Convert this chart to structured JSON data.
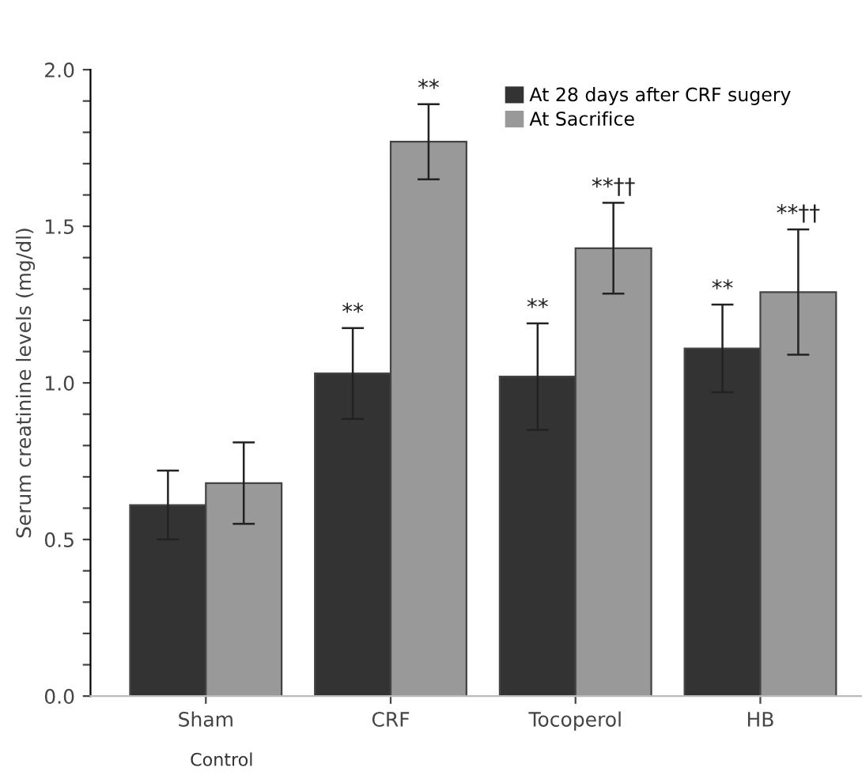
{
  "chart_data": {
    "type": "bar",
    "ylabel": "Serum creatinine levels (mg/dl)",
    "xlabel": "Control",
    "categories": [
      "Sham",
      "CRF",
      "Tocoperol",
      "HB"
    ],
    "series": [
      {
        "name": "At 28 days after CRF sugery",
        "color": "#333333",
        "values": [
          0.61,
          1.03,
          1.02,
          1.11
        ],
        "errors": [
          0.11,
          0.145,
          0.17,
          0.14
        ],
        "value_labels": [
          null,
          "**",
          "**",
          "**"
        ]
      },
      {
        "name": "At Sacrifice",
        "color": "#999999",
        "values": [
          0.68,
          1.77,
          1.43,
          1.29
        ],
        "errors": [
          0.13,
          0.12,
          0.145,
          0.2
        ],
        "value_labels": [
          null,
          "**",
          "**††",
          "**††"
        ]
      }
    ],
    "ylim": [
      0,
      2.0
    ],
    "yticks": [
      {
        "value": 0,
        "label": "0.0"
      },
      {
        "value": 0.1,
        "label": null
      },
      {
        "value": 0.2,
        "label": null
      },
      {
        "value": 0.3,
        "label": null
      },
      {
        "value": 0.4,
        "label": null
      },
      {
        "value": 0.5,
        "label": "0.5"
      },
      {
        "value": 0.6,
        "label": null
      },
      {
        "value": 0.7,
        "label": null
      },
      {
        "value": 0.8,
        "label": null
      },
      {
        "value": 0.9,
        "label": null
      },
      {
        "value": 1.0,
        "label": "1.0"
      },
      {
        "value": 1.1,
        "label": null
      },
      {
        "value": 1.2,
        "label": null
      },
      {
        "value": 1.3,
        "label": null
      },
      {
        "value": 1.4,
        "label": null
      },
      {
        "value": 1.5,
        "label": "1.5"
      },
      {
        "value": 1.6,
        "label": null
      },
      {
        "value": 1.7,
        "label": null
      },
      {
        "value": 1.8,
        "label": null
      },
      {
        "value": 1.9,
        "label": null
      },
      {
        "value": 2.0,
        "label": "2.0"
      }
    ],
    "legend": "top right",
    "grid": false
  }
}
